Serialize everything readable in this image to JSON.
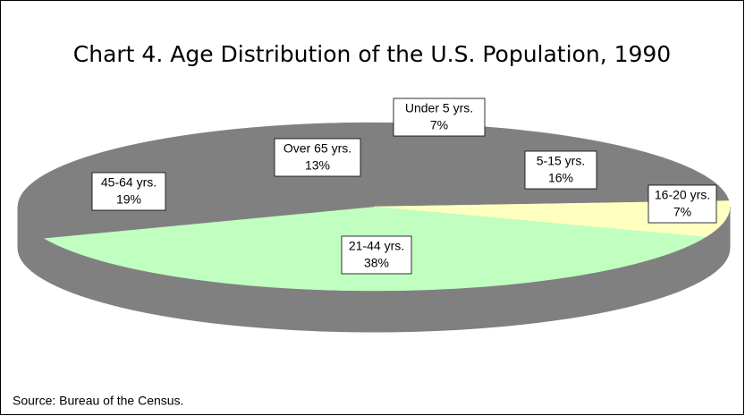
{
  "chart_data": {
    "type": "pie",
    "title": "Chart 4.  Age Distribution of the U.S. Population, 1990",
    "source": "Source:  Bureau of the Census.",
    "categories": [
      "Under 5 yrs.",
      "5-15 yrs.",
      "16-20 yrs.",
      "21-44 yrs.",
      "45-64 yrs.",
      "Over 65 yrs."
    ],
    "values": [
      7,
      16,
      7,
      38,
      19,
      13
    ],
    "value_labels": [
      "7%",
      "16%",
      "7%",
      "38%",
      "19%",
      "13%"
    ],
    "colors": [
      "#808080",
      "#808080",
      "#ffffc0",
      "#c0ffc0",
      "#808080",
      "#808080"
    ]
  }
}
